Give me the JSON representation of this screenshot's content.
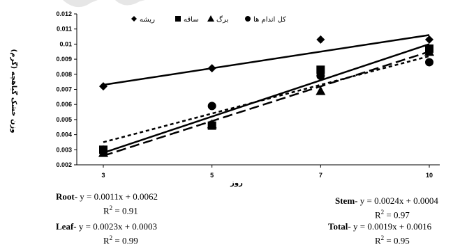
{
  "chart_data": {
    "type": "scatter",
    "x": [
      3,
      5,
      7,
      10
    ],
    "xlabel": "روز",
    "ylabel": "وزن خشک گیاهچه (گرم)",
    "ylim": [
      0.002,
      0.012
    ],
    "yticks": [
      "0.002",
      "0.003",
      "0.004",
      "0.005",
      "0.006",
      "0.007",
      "0.008",
      "0.009",
      "0.01",
      "0.011",
      "0.012"
    ],
    "xticks": [
      "3",
      "5",
      "7",
      "10"
    ],
    "grid": false,
    "legend_position": "top-left",
    "series": [
      {
        "name": "ریشه",
        "marker": "diamond",
        "values": [
          0.0072,
          0.0084,
          0.0103,
          0.0103
        ],
        "trend": {
          "slope": 0.0011,
          "intercept": 0.0062,
          "style": "solid"
        }
      },
      {
        "name": "ساقه",
        "marker": "square",
        "values": [
          0.003,
          0.0046,
          0.0083,
          0.0097
        ],
        "trend": {
          "slope": 0.0024,
          "intercept": 0.0004,
          "style": "solid"
        }
      },
      {
        "name": "برگ",
        "marker": "triangle",
        "values": [
          0.0028,
          0.0047,
          0.0069,
          0.0095
        ],
        "trend": {
          "slope": 0.0023,
          "intercept": 0.0003,
          "style": "long-dash"
        }
      },
      {
        "name": "کل اندام ها",
        "marker": "circle",
        "values": [
          0.003,
          0.0059,
          0.0079,
          0.0088
        ],
        "trend": {
          "slope": 0.0019,
          "intercept": 0.0016,
          "style": "short-dash"
        }
      }
    ]
  },
  "equations": {
    "root": {
      "label": "Root-",
      "eq": " y = 0.0011x + 0.0062",
      "r2": "= 0.91"
    },
    "stem": {
      "label": "Stem-",
      "eq": " y = 0.0024x + 0.0004",
      "r2": "= 0.97"
    },
    "leaf": {
      "label": "Leaf-",
      "eq": " y = 0.0023x + 0.0003",
      "r2": "= 0.99"
    },
    "total": {
      "label": "Total-",
      "eq": " y = 0.0019x + 0.0016",
      "r2": "= 0.95"
    }
  },
  "colors": {
    "ink": "#000000",
    "axis": "#000000",
    "watermark": "#d9d9d9"
  }
}
